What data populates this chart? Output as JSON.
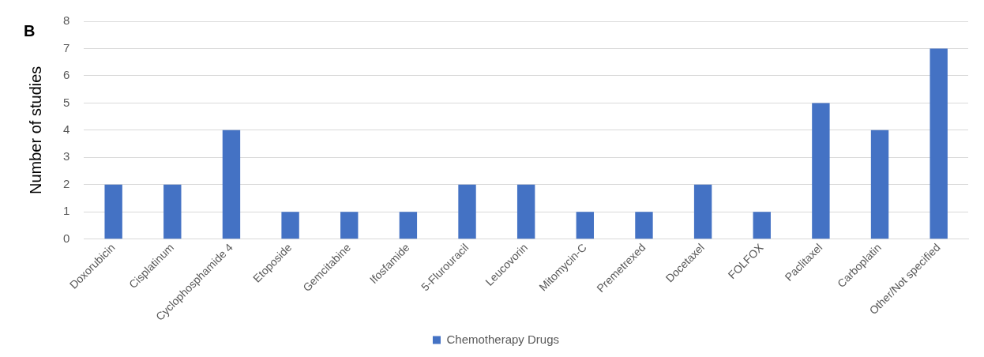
{
  "chart_data": {
    "type": "bar",
    "title": "B",
    "ylabel": "Number of studies",
    "categories": [
      "Doxorubicin",
      "Cisplatinum",
      "Cyclophosphamide 4",
      "Etoposide",
      "Gemcitabine",
      "Ifosfamide",
      "5-Flurouracil",
      "Leucovorin",
      "Mitomycin-C",
      "Premetrexed",
      "Docetaxel",
      "FOLFOX",
      "Paclitaxel",
      "Carboplatin",
      "Other/Not specified"
    ],
    "series": [
      {
        "name": "Chemotherapy Drugs",
        "color": "#4472c4",
        "values": [
          2,
          2,
          4,
          1,
          1,
          1,
          2,
          2,
          1,
          1,
          2,
          1,
          5,
          4,
          7
        ]
      }
    ],
    "ylim": [
      0,
      8
    ],
    "yticks": [
      0,
      1,
      2,
      3,
      4,
      5,
      6,
      7,
      8
    ],
    "grid": "y",
    "legend": "bottom"
  }
}
